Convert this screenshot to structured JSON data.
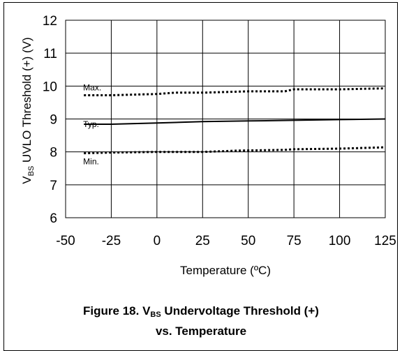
{
  "chart_data": {
    "type": "line",
    "title_line1_prefix": "Figure 18. V",
    "title_line1_sub": "BS",
    "title_line1_suffix": " Undervoltage Threshold (+)",
    "title_line2": "vs. Temperature",
    "ylabel_prefix": "V",
    "ylabel_sub": "BS",
    "ylabel_suffix": " UVLO Threshold (+) (V)",
    "xlabel": "Temperature (ºC)",
    "xlim": [
      -50,
      125
    ],
    "ylim": [
      6,
      12
    ],
    "x_ticks": [
      "-50",
      "-25",
      "0",
      "25",
      "50",
      "75",
      "100",
      "125"
    ],
    "y_ticks": [
      "6",
      "7",
      "8",
      "9",
      "10",
      "11",
      "12"
    ],
    "grid": true,
    "series": [
      {
        "name": "Max.",
        "style": "dotted",
        "x": [
          -40,
          -25,
          0,
          10,
          25,
          50,
          70,
          75,
          100,
          125
        ],
        "y": [
          9.72,
          9.72,
          9.76,
          9.8,
          9.8,
          9.84,
          9.84,
          9.9,
          9.9,
          9.93
        ]
      },
      {
        "name": "Typ.",
        "style": "solid",
        "x": [
          -40,
          -25,
          0,
          25,
          50,
          75,
          100,
          125
        ],
        "y": [
          8.84,
          8.84,
          8.88,
          8.92,
          8.94,
          8.96,
          8.98,
          9.0
        ]
      },
      {
        "name": "Min.",
        "style": "dotted",
        "x": [
          -40,
          -25,
          0,
          25,
          45,
          70,
          75,
          100,
          125
        ],
        "y": [
          7.96,
          7.98,
          8.0,
          8.0,
          8.04,
          8.06,
          8.08,
          8.1,
          8.14
        ]
      }
    ]
  }
}
